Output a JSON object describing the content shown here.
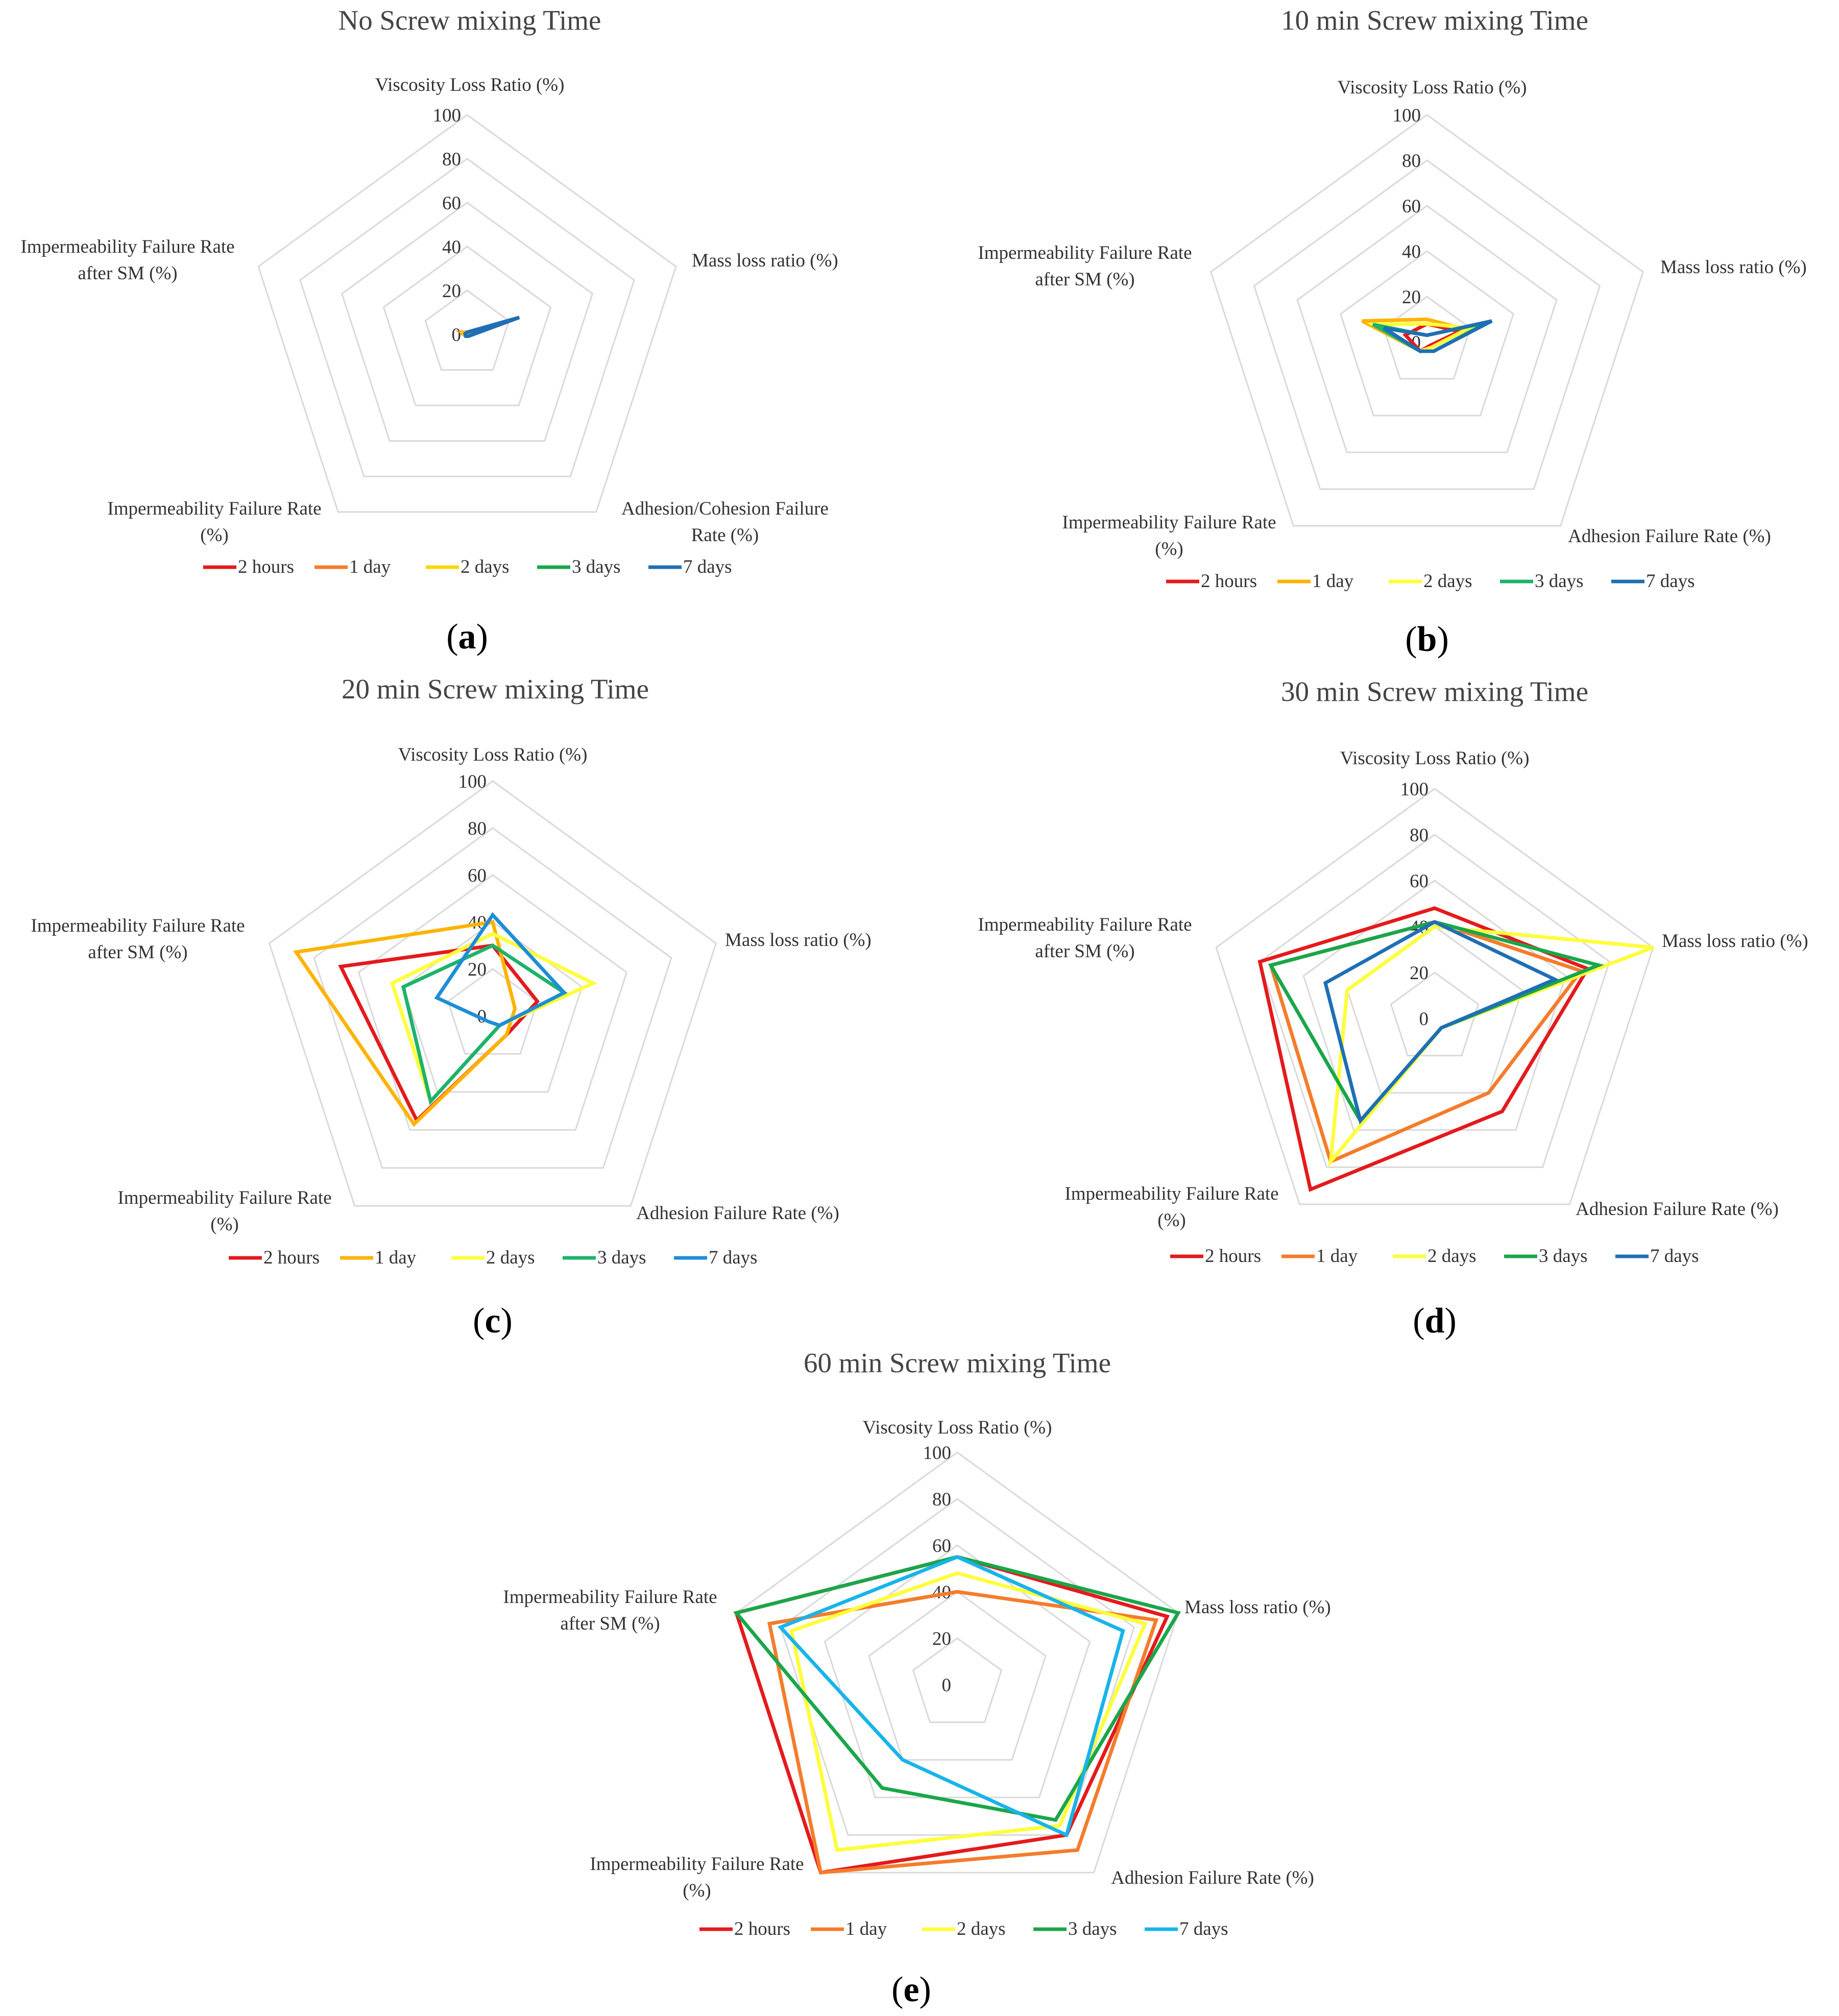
{
  "figure": {
    "panel_labels": [
      "a",
      "b",
      "c",
      "d",
      "e"
    ]
  },
  "chart_data": [
    {
      "type": "radar",
      "panel": "a",
      "title": "No Screw mixing Time",
      "axes": [
        "Viscosity Loss Ratio (%)",
        "Mass loss ratio (%)",
        "Adhesion/Cohesion Failure Rate (%)",
        "Impermeability Failure Rate (%)",
        "Impermeability Failure Rate after SM (%)"
      ],
      "rlim": [
        0,
        100
      ],
      "ticks": [
        0,
        20,
        40,
        60,
        80,
        100
      ],
      "legend_position": "bottom",
      "series": [
        {
          "name": "2 hours",
          "color": "#e41a1c",
          "values": [
            1,
            4,
            1,
            1,
            2
          ]
        },
        {
          "name": "1 day",
          "color": "#f47c2b",
          "values": [
            1,
            5,
            1,
            1,
            3
          ]
        },
        {
          "name": "2 days",
          "color": "#ffd600",
          "values": [
            1,
            8,
            1,
            1,
            2
          ]
        },
        {
          "name": "3 days",
          "color": "#1aa64a",
          "values": [
            1,
            15,
            1,
            1,
            1
          ]
        },
        {
          "name": "7 days",
          "color": "#1f6fb4",
          "values": [
            1,
            25,
            1,
            1,
            1
          ]
        }
      ]
    },
    {
      "type": "radar",
      "panel": "b",
      "title": "10 min Screw mixing Time",
      "axes": [
        "Viscosity Loss Ratio (%)",
        "Mass loss ratio (%)",
        "Adhesion Failure Rate (%)",
        "Impermeability Failure Rate (%)",
        "Impermeability Failure Rate after SM (%)"
      ],
      "rlim": [
        0,
        100
      ],
      "ticks": [
        0,
        20,
        40,
        60,
        80,
        100
      ],
      "legend_position": "bottom",
      "series": [
        {
          "name": "2 hours",
          "color": "#e41a1c",
          "values": [
            8,
            15,
            2,
            5,
            10
          ]
        },
        {
          "name": "1 day",
          "color": "#ffb300",
          "values": [
            10,
            18,
            3,
            5,
            30
          ]
        },
        {
          "name": "2 days",
          "color": "#ffff3a",
          "values": [
            8,
            20,
            3,
            5,
            25
          ]
        },
        {
          "name": "3 days",
          "color": "#1db36b",
          "values": [
            3,
            28,
            5,
            5,
            25
          ]
        },
        {
          "name": "7 days",
          "color": "#1f6fb4",
          "values": [
            3,
            30,
            5,
            5,
            20
          ]
        }
      ]
    },
    {
      "type": "radar",
      "panel": "c",
      "title": "20 min Screw mixing Time",
      "axes": [
        "Viscosity Loss Ratio (%)",
        "Mass loss ratio (%)",
        "Adhesion Failure Rate (%)",
        "Impermeability Failure Rate (%)",
        "Impermeability Failure Rate after SM (%)"
      ],
      "rlim": [
        0,
        100
      ],
      "ticks": [
        0,
        20,
        40,
        60,
        80,
        100
      ],
      "legend_position": "bottom",
      "series": [
        {
          "name": "2 hours",
          "color": "#e41a1c",
          "values": [
            30,
            20,
            10,
            55,
            68
          ]
        },
        {
          "name": "1 day",
          "color": "#ffb300",
          "values": [
            40,
            10,
            10,
            57,
            88
          ]
        },
        {
          "name": "2 days",
          "color": "#ffff3a",
          "values": [
            35,
            45,
            5,
            45,
            45
          ]
        },
        {
          "name": "3 days",
          "color": "#1db36b",
          "values": [
            30,
            32,
            5,
            45,
            40
          ]
        },
        {
          "name": "7 days",
          "color": "#1f8dd6",
          "values": [
            43,
            32,
            5,
            3,
            25
          ]
        }
      ]
    },
    {
      "type": "radar",
      "panel": "d",
      "title": "30 min Screw mixing Time",
      "axes": [
        "Viscosity Loss Ratio (%)",
        "Mass loss ratio (%)",
        "Adhesion Failure Rate (%)",
        "Impermeability Failure Rate (%)",
        "Impermeability Failure Rate after SM (%)"
      ],
      "rlim": [
        0,
        100
      ],
      "ticks": [
        0,
        20,
        40,
        60,
        80,
        100
      ],
      "legend_position": "bottom",
      "series": [
        {
          "name": "2 hours",
          "color": "#e41a1c",
          "values": [
            48,
            70,
            50,
            92,
            80
          ]
        },
        {
          "name": "1 day",
          "color": "#f47c2b",
          "values": [
            42,
            67,
            40,
            77,
            75
          ]
        },
        {
          "name": "2 days",
          "color": "#ffff3a",
          "values": [
            40,
            100,
            5,
            77,
            40
          ]
        },
        {
          "name": "3 days",
          "color": "#1aa64a",
          "values": [
            42,
            75,
            5,
            55,
            75
          ]
        },
        {
          "name": "7 days",
          "color": "#1f6fb4",
          "values": [
            42,
            55,
            5,
            55,
            50
          ]
        }
      ]
    },
    {
      "type": "radar",
      "panel": "e",
      "title": "60 min Screw mixing Time",
      "axes": [
        "Viscosity Loss Ratio (%)",
        "Mass loss ratio (%)",
        "Adhesion Failure Rate (%)",
        "Impermeability Failure Rate (%)",
        "Impermeability Failure Rate after SM (%)"
      ],
      "rlim": [
        0,
        100
      ],
      "ticks": [
        0,
        20,
        40,
        60,
        80,
        100
      ],
      "legend_position": "bottom",
      "series": [
        {
          "name": "2 hours",
          "color": "#e41a1c",
          "values": [
            55,
            95,
            80,
            100,
            100
          ]
        },
        {
          "name": "1 day",
          "color": "#f47c2b",
          "values": [
            40,
            90,
            88,
            100,
            85
          ]
        },
        {
          "name": "2 days",
          "color": "#ffff3a",
          "values": [
            48,
            85,
            75,
            88,
            75
          ]
        },
        {
          "name": "3 days",
          "color": "#1aa64a",
          "values": [
            55,
            100,
            72,
            55,
            100
          ]
        },
        {
          "name": "7 days",
          "color": "#19b4e8",
          "values": [
            55,
            75,
            80,
            40,
            80
          ]
        }
      ]
    }
  ]
}
